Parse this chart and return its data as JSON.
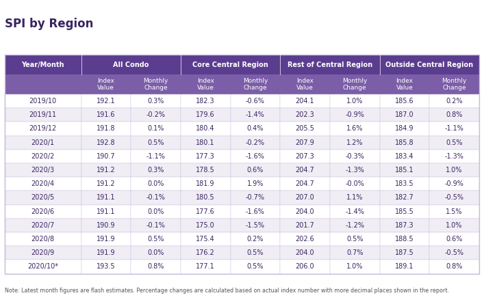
{
  "title": "SPI by Region",
  "note": "Note: Latest month figures are flash estimates. Percentage changes are calculated based on actual index number with more decimal places shown in the report.",
  "header_bg": "#5b3d8f",
  "header_text": "#ffffff",
  "subheader_bg": "#7b5ea7",
  "row_bg_odd": "#ffffff",
  "row_bg_even": "#f0edf5",
  "border_color": "#c8bedd",
  "title_color": "#3a2460",
  "col_headers": [
    "Year/Month",
    "All Condo",
    "",
    "Core Central Region",
    "",
    "Rest of Central Region",
    "",
    "Outside Central Region",
    ""
  ],
  "sub_headers": [
    "",
    "Index\nValue",
    "Monthly\nChange",
    "Index\nValue",
    "Monthly\nChange",
    "Index\nValue",
    "Monthly\nChange",
    "Index\nValue",
    "Monthly\nChange"
  ],
  "rows": [
    [
      "2019/10",
      "192.1",
      "0.3%",
      "182.3",
      "-0.6%",
      "204.1",
      "1.0%",
      "185.6",
      "0.2%"
    ],
    [
      "2019/11",
      "191.6",
      "-0.2%",
      "179.6",
      "-1.4%",
      "202.3",
      "-0.9%",
      "187.0",
      "0.8%"
    ],
    [
      "2019/12",
      "191.8",
      "0.1%",
      "180.4",
      "0.4%",
      "205.5",
      "1.6%",
      "184.9",
      "-1.1%"
    ],
    [
      "2020/1",
      "192.8",
      "0.5%",
      "180.1",
      "-0.2%",
      "207.9",
      "1.2%",
      "185.8",
      "0.5%"
    ],
    [
      "2020/2",
      "190.7",
      "-1.1%",
      "177.3",
      "-1.6%",
      "207.3",
      "-0.3%",
      "183.4",
      "-1.3%"
    ],
    [
      "2020/3",
      "191.2",
      "0.3%",
      "178.5",
      "0.6%",
      "204.7",
      "-1.3%",
      "185.1",
      "1.0%"
    ],
    [
      "2020/4",
      "191.2",
      "0.0%",
      "181.9",
      "1.9%",
      "204.7",
      "-0.0%",
      "183.5",
      "-0.9%"
    ],
    [
      "2020/5",
      "191.1",
      "-0.1%",
      "180.5",
      "-0.7%",
      "207.0",
      "1.1%",
      "182.7",
      "-0.5%"
    ],
    [
      "2020/6",
      "191.1",
      "0.0%",
      "177.6",
      "-1.6%",
      "204.0",
      "-1.4%",
      "185.5",
      "1.5%"
    ],
    [
      "2020/7",
      "190.9",
      "-0.1%",
      "175.0",
      "-1.5%",
      "201.7",
      "-1.2%",
      "187.3",
      "1.0%"
    ],
    [
      "2020/8",
      "191.9",
      "0.5%",
      "175.4",
      "0.2%",
      "202.6",
      "0.5%",
      "188.5",
      "0.6%"
    ],
    [
      "2020/9",
      "191.9",
      "0.0%",
      "176.2",
      "0.5%",
      "204.0",
      "0.7%",
      "187.5",
      "-0.5%"
    ],
    [
      "2020/10*",
      "193.5",
      "0.8%",
      "177.1",
      "0.5%",
      "206.0",
      "1.0%",
      "189.1",
      "0.8%"
    ]
  ]
}
